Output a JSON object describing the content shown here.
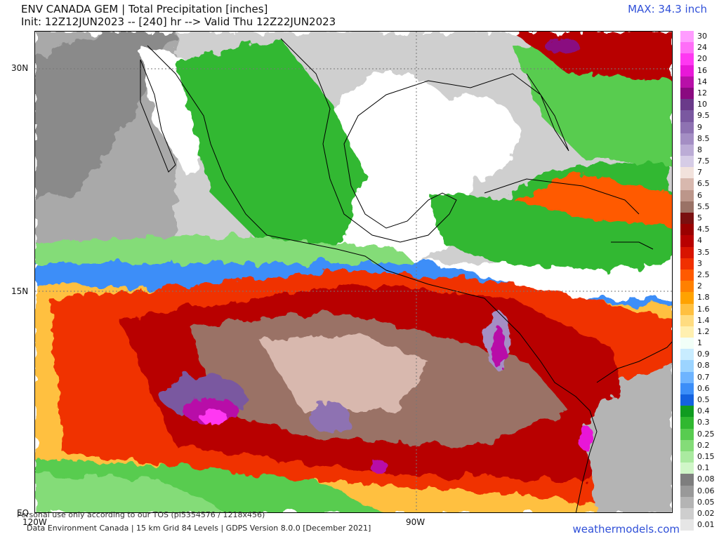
{
  "header": {
    "line1": "ENV CANADA GEM | Total Precipitation [inches]",
    "line2": "Init: 12Z12JUN2023 -- [240] hr --> Valid Thu 12Z22JUN2023",
    "max_label": "MAX: 34.3 inch"
  },
  "axes": {
    "lat_30": "30N",
    "lat_15": "15N",
    "lat_eq": "EQ",
    "lon_120": "120W",
    "lon_90": "90W"
  },
  "footer": {
    "personal_use": "Personal use only according to our TOS (pl5354576 / 1218x456)",
    "credits": "Data Environment Canada | 15 km Grid 84 Levels | GDPS Version 8.0.0 [December 2021]",
    "brand": "weathermodels.com"
  },
  "legend": [
    {
      "label": "30",
      "color": "#ff9cff"
    },
    {
      "label": "24",
      "color": "#ff6ef8"
    },
    {
      "label": "20",
      "color": "#ff38f2"
    },
    {
      "label": "16",
      "color": "#e818d8"
    },
    {
      "label": "14",
      "color": "#b810a8"
    },
    {
      "label": "12",
      "color": "#8a0a80"
    },
    {
      "label": "10",
      "color": "#6a3a8a"
    },
    {
      "label": "9.5",
      "color": "#7a58a0"
    },
    {
      "label": "9",
      "color": "#8e72b2"
    },
    {
      "label": "8.5",
      "color": "#a48ec4"
    },
    {
      "label": "8",
      "color": "#bcacd6"
    },
    {
      "label": "7.5",
      "color": "#d6cce6"
    },
    {
      "label": "7",
      "color": "#f2e2dc"
    },
    {
      "label": "6.5",
      "color": "#d8b8ae"
    },
    {
      "label": "6",
      "color": "#bc968a"
    },
    {
      "label": "5.5",
      "color": "#9a7266"
    },
    {
      "label": "5",
      "color": "#7a1010"
    },
    {
      "label": "4.5",
      "color": "#9a0000"
    },
    {
      "label": "4",
      "color": "#b80000"
    },
    {
      "label": "3.5",
      "color": "#d81400"
    },
    {
      "label": "3",
      "color": "#f03000"
    },
    {
      "label": "2.5",
      "color": "#ff5a00"
    },
    {
      "label": "2",
      "color": "#ff8000"
    },
    {
      "label": "1.8",
      "color": "#ffa200"
    },
    {
      "label": "1.6",
      "color": "#ffc040"
    },
    {
      "label": "1.4",
      "color": "#ffdc80"
    },
    {
      "label": "1.2",
      "color": "#fff0b0"
    },
    {
      "label": "1",
      "color": "#f2fff8"
    },
    {
      "label": "0.9",
      "color": "#c8ecff"
    },
    {
      "label": "0.8",
      "color": "#9cd4ff"
    },
    {
      "label": "0.7",
      "color": "#6eb4ff"
    },
    {
      "label": "0.6",
      "color": "#3c8ef8"
    },
    {
      "label": "0.5",
      "color": "#1462e0"
    },
    {
      "label": "0.4",
      "color": "#109c20"
    },
    {
      "label": "0.3",
      "color": "#30b830"
    },
    {
      "label": "0.25",
      "color": "#58cc50"
    },
    {
      "label": "0.2",
      "color": "#84dc78"
    },
    {
      "label": "0.15",
      "color": "#aaeaa0"
    },
    {
      "label": "0.1",
      "color": "#d0f6c8"
    },
    {
      "label": "0.08",
      "color": "#7e7e7e"
    },
    {
      "label": "0.06",
      "color": "#999999"
    },
    {
      "label": "0.05",
      "color": "#b4b4b4"
    },
    {
      "label": "0.02",
      "color": "#cecece"
    },
    {
      "label": "0.01",
      "color": "#e6e6e6"
    }
  ]
}
